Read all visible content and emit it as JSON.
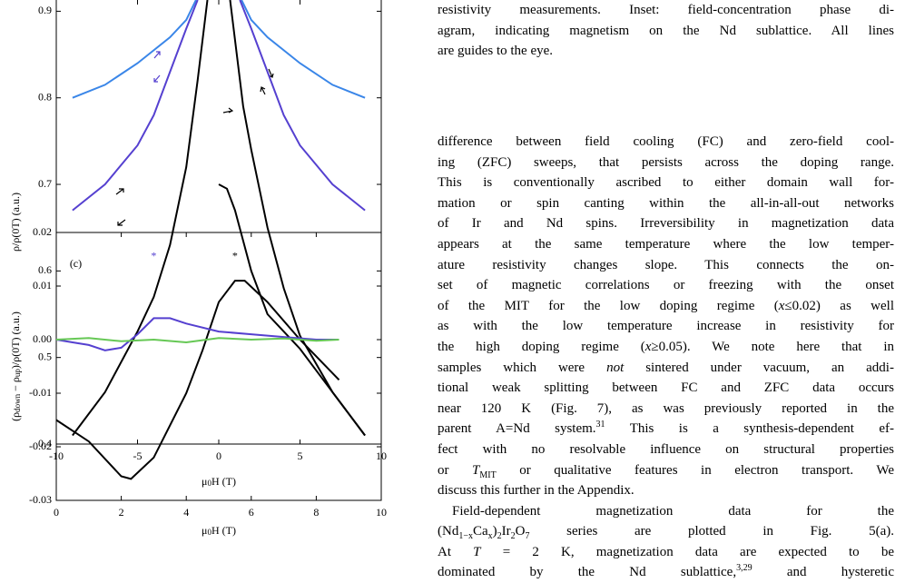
{
  "chart_data": [
    {
      "type": "line",
      "xlim": [
        -10,
        10
      ],
      "ylim": [
        0.4,
        0.913
      ],
      "xticks": [
        -10,
        -5,
        0,
        5,
        10
      ],
      "yticks": [
        0.4,
        0.5,
        0.6,
        0.7,
        0.8,
        0.9
      ],
      "xlabel": [
        "μ",
        [
          "0",
          "sub"
        ],
        "H (T)"
      ],
      "ylabel": "ρ/ρ(0T) (a.u.)",
      "series": [
        {
          "color": "#3a86e8",
          "x": [
            -9,
            -7,
            -5,
            -3,
            -2,
            -1.4,
            0,
            1.4,
            2,
            3,
            5,
            7,
            9
          ],
          "values": [
            0.8,
            0.815,
            0.84,
            0.87,
            0.89,
            0.913,
            null,
            0.913,
            0.89,
            0.87,
            0.84,
            0.815,
            0.8
          ]
        },
        {
          "color": "#5540d0",
          "x": [
            -9,
            -7,
            -5,
            -4,
            -3,
            -2,
            -1.3,
            0,
            1.3,
            2,
            3,
            4,
            5,
            7,
            9
          ],
          "values": [
            0.67,
            0.7,
            0.745,
            0.78,
            0.83,
            0.88,
            0.913,
            null,
            0.913,
            0.88,
            0.83,
            0.78,
            0.745,
            0.7,
            0.67
          ]
        },
        {
          "color": "#000000",
          "x": [
            -9,
            -7,
            -5,
            -4,
            -3,
            -2,
            -1.3,
            -0.7,
            0,
            0.7,
            1.5,
            2,
            3,
            4,
            5,
            7,
            9
          ],
          "values": [
            0.41,
            0.46,
            0.53,
            0.57,
            0.63,
            0.72,
            0.82,
            0.913,
            null,
            0.913,
            0.79,
            0.74,
            0.65,
            0.58,
            0.525,
            0.46,
            0.41
          ]
        },
        {
          "color": "#000000",
          "x": [
            0,
            0.5,
            1,
            2,
            3,
            4,
            5,
            7,
            9
          ],
          "values": [
            0.7,
            0.695,
            0.67,
            0.6,
            0.55,
            0.53,
            0.51,
            0.46,
            0.41
          ]
        }
      ]
    },
    {
      "type": "line",
      "xlim": [
        0,
        10
      ],
      "ylim": [
        -0.03,
        0.02
      ],
      "xticks": [
        0,
        2,
        4,
        6,
        8,
        10
      ],
      "yticks": [
        -0.03,
        -0.02,
        -0.01,
        {
          "value": 0,
          "label": "0.00"
        },
        0.01,
        0.02
      ],
      "xlabel": [
        "μ",
        [
          "0",
          "sub"
        ],
        "H (T)"
      ],
      "ylabel": [
        "(ρ",
        [
          "down",
          "sub"
        ],
        " − ρ",
        [
          "up",
          "sub"
        ],
        ")/ρ(0T) (a.u.)"
      ],
      "annotations": [
        {
          "text": "(c)",
          "color": "#000000"
        },
        {
          "text": "*",
          "color": "#5540d0"
        },
        {
          "text": "*",
          "color": "#000000"
        }
      ],
      "series": [
        {
          "color": "#000000",
          "x": [
            0,
            1,
            2,
            2.3,
            3,
            4,
            4.5,
            5,
            5.5,
            5.8,
            6.5,
            7.5,
            8.7
          ],
          "values": [
            -0.015,
            -0.019,
            -0.0255,
            -0.026,
            -0.022,
            -0.01,
            -0.002,
            0.007,
            0.011,
            0.011,
            0.007,
            0,
            -0.0075
          ]
        },
        {
          "color": "#5540d0",
          "x": [
            0,
            0.5,
            1,
            1.5,
            2,
            2.5,
            3,
            3.5,
            4,
            5,
            6,
            7,
            8,
            8.7
          ],
          "values": [
            0,
            -0.0005,
            -0.001,
            -0.002,
            -0.0015,
            0.001,
            0.004,
            0.004,
            0.003,
            0.0015,
            0.001,
            0.0005,
            0,
            0
          ]
        },
        {
          "color": "#66c855",
          "x": [
            0,
            1,
            2,
            3,
            4,
            5,
            6,
            7,
            8,
            8.7
          ],
          "values": [
            0,
            0.0003,
            -0.0003,
            0,
            -0.0005,
            0.0003,
            0,
            0.0002,
            -0.0002,
            0
          ]
        }
      ]
    }
  ],
  "caption": {
    "lines": [
      "resistivity measurements. Inset: field-concentration phase di-",
      "agram, indicating magnetism on the Nd sublattice. All lines",
      "are guides to the eye."
    ]
  },
  "body": {
    "lines": [
      "difference between field cooling (FC) and zero-field cool-",
      "ing (ZFC) sweeps, that persists across the doping range.",
      "This is conventionally ascribed to either domain wall for-",
      "mation or spin canting within the all-in-all-out networks",
      "of Ir and Nd spins. Irreversibility in magnetization data",
      "appears at the same temperature where the low temper-",
      "ature resistivity changes slope. This connects the on-",
      "set of magnetic correlations or freezing with the onset",
      [
        "of the MIT for the low doping regime (",
        [
          "x",
          "i"
        ],
        "≤0.02) as well"
      ],
      "as with the low temperature increase in resistivity for",
      [
        "the high doping regime (",
        [
          "x",
          "i"
        ],
        "≥0.05). We note here that in"
      ],
      [
        "samples which were ",
        [
          "not",
          "i"
        ],
        " sintered under vacuum, an addi-"
      ],
      "tional weak splitting between FC and ZFC data occurs",
      "near 120 K (Fig. 7), as was previously reported in the",
      [
        "parent A=Nd system.",
        [
          "31",
          "sup"
        ],
        " This is a synthesis-dependent ef-"
      ],
      "fect with no resolvable influence on structural properties",
      [
        "or ",
        [
          "T",
          "i"
        ],
        [
          "MIT",
          "sub"
        ],
        " or qualitative features in electron transport. We"
      ],
      "discuss this further in the Appendix.",
      "Field-dependent magnetization data for the",
      [
        "(Nd",
        [
          "1−x",
          "sub"
        ],
        "Ca",
        [
          "x",
          "sub"
        ],
        ")",
        [
          "2",
          "sub"
        ],
        "Ir",
        [
          "2",
          "sub"
        ],
        "O",
        [
          "7",
          "sub"
        ],
        " series are plotted in Fig. 5(a)."
      ],
      [
        "At ",
        [
          "T",
          "i"
        ],
        " = 2 K, magnetization data are expected to be"
      ],
      [
        "dominated by the Nd sublattice,",
        [
          "3,29",
          "sup"
        ],
        " and hysteretic"
      ]
    ]
  }
}
